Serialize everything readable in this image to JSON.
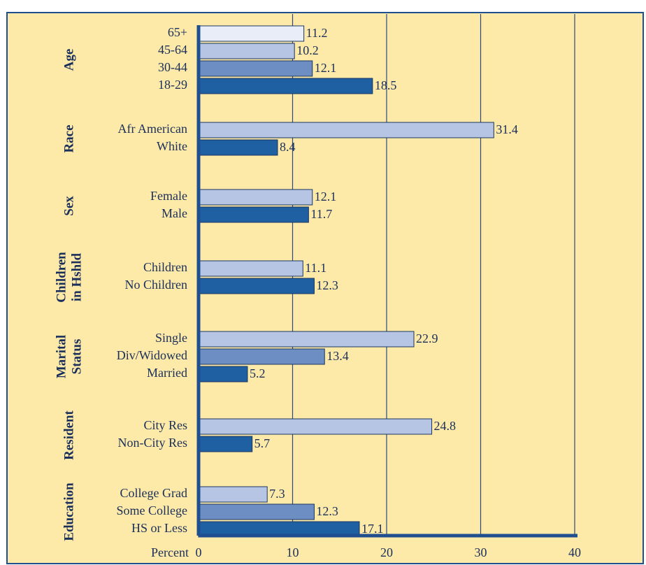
{
  "chart_data": {
    "type": "grouped-hbar",
    "xlabel": "Percent",
    "xlim": [
      0,
      40
    ],
    "xticks": [
      0,
      10,
      20,
      30,
      40
    ],
    "grid": true,
    "groups": [
      {
        "name": [
          "Age"
        ],
        "categories": [
          "65+",
          "45-64",
          "30-44",
          "18-29"
        ],
        "values": [
          11.2,
          10.2,
          12.1,
          18.5
        ],
        "colors": [
          "#e9edf7",
          "#b5c5e3",
          "#6d8ec3",
          "#1f60a2"
        ]
      },
      {
        "name": [
          "Race"
        ],
        "categories": [
          "Afr American",
          "White"
        ],
        "values": [
          31.4,
          8.4
        ],
        "colors": [
          "#b5c5e3",
          "#1f60a2"
        ]
      },
      {
        "name": [
          "Sex"
        ],
        "categories": [
          "Female",
          "Male"
        ],
        "values": [
          12.1,
          11.7
        ],
        "colors": [
          "#b5c5e3",
          "#1f60a2"
        ]
      },
      {
        "name": [
          "Children",
          "in Hshld"
        ],
        "categories": [
          "Children",
          "No Children"
        ],
        "values": [
          11.1,
          12.3
        ],
        "colors": [
          "#b5c5e3",
          "#1f60a2"
        ]
      },
      {
        "name": [
          "Marital",
          "Status"
        ],
        "categories": [
          "Single",
          "Div/Widowed",
          "Married"
        ],
        "values": [
          22.9,
          13.4,
          5.2
        ],
        "colors": [
          "#b5c5e3",
          "#6d8ec3",
          "#1f60a2"
        ]
      },
      {
        "name": [
          "Resident"
        ],
        "categories": [
          "City Res",
          "Non-City Res"
        ],
        "values": [
          24.8,
          5.7
        ],
        "colors": [
          "#b5c5e3",
          "#1f60a2"
        ]
      },
      {
        "name": [
          "Education"
        ],
        "categories": [
          "College Grad",
          "Some College",
          "HS or Less"
        ],
        "values": [
          7.3,
          12.3,
          17.1
        ],
        "colors": [
          "#b5c5e3",
          "#6d8ec3",
          "#1f60a2"
        ]
      }
    ]
  }
}
